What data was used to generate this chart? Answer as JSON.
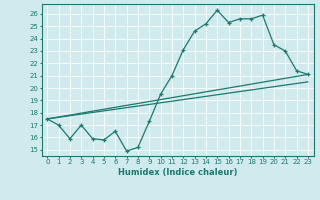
{
  "xlabel": "Humidex (Indice chaleur)",
  "xlim": [
    -0.5,
    23.5
  ],
  "ylim": [
    14.5,
    26.8
  ],
  "yticks": [
    15,
    16,
    17,
    18,
    19,
    20,
    21,
    22,
    23,
    24,
    25,
    26
  ],
  "xticks": [
    0,
    1,
    2,
    3,
    4,
    5,
    6,
    7,
    8,
    9,
    10,
    11,
    12,
    13,
    14,
    15,
    16,
    17,
    18,
    19,
    20,
    21,
    22,
    23
  ],
  "bg_color": "#d0eaed",
  "line_color": "#1a7a6e",
  "grid_color": "#ffffff",
  "main_line": {
    "x": [
      0,
      1,
      2,
      3,
      4,
      5,
      6,
      7,
      8,
      9,
      10,
      11,
      12,
      13,
      14,
      15,
      16,
      17,
      18,
      19,
      20,
      21,
      22,
      23
    ],
    "y": [
      17.5,
      17.0,
      15.9,
      17.0,
      15.9,
      15.8,
      16.5,
      14.9,
      15.2,
      17.3,
      19.5,
      21.0,
      23.1,
      24.6,
      25.2,
      26.3,
      25.3,
      25.6,
      25.6,
      25.9,
      23.5,
      23.0,
      21.4,
      21.1
    ]
  },
  "trend_lines": [
    {
      "x": [
        0,
        23
      ],
      "y": [
        17.5,
        21.1
      ]
    },
    {
      "x": [
        0,
        23
      ],
      "y": [
        17.5,
        20.5
      ]
    }
  ]
}
